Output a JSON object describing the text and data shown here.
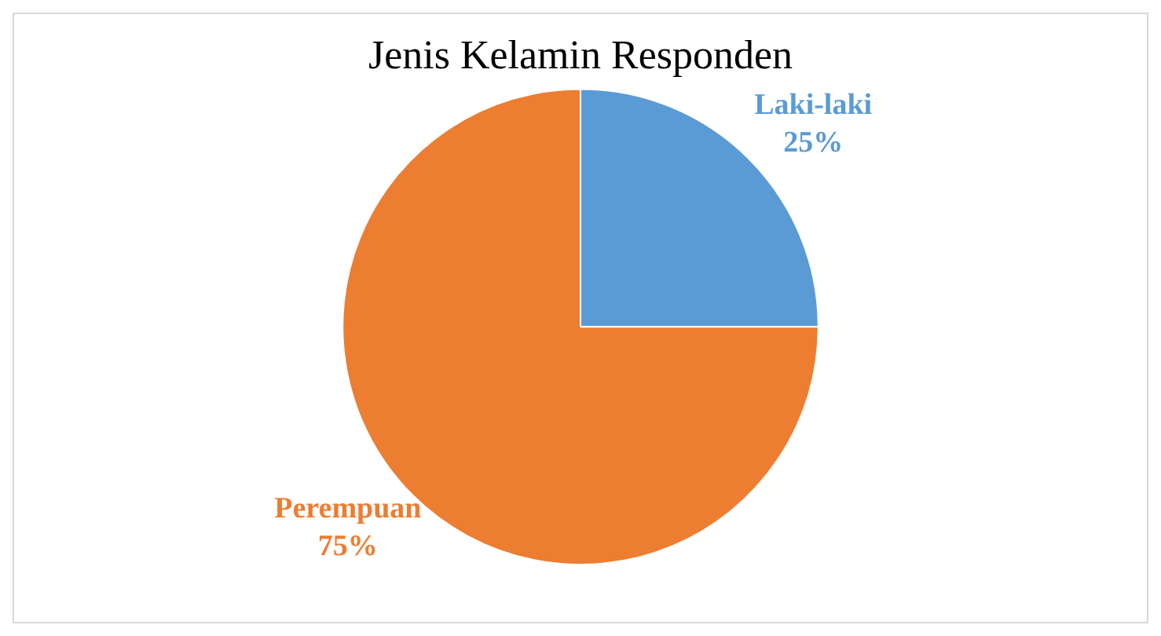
{
  "chart_data": {
    "type": "pie",
    "title": "Jenis Kelamin Responden",
    "categories": [
      "Laki-laki",
      "Perempuan"
    ],
    "values": [
      25,
      75
    ],
    "colors": [
      "#5b9bd5",
      "#ed7d31"
    ],
    "value_labels": [
      "25%",
      "75%"
    ],
    "legend": false
  }
}
